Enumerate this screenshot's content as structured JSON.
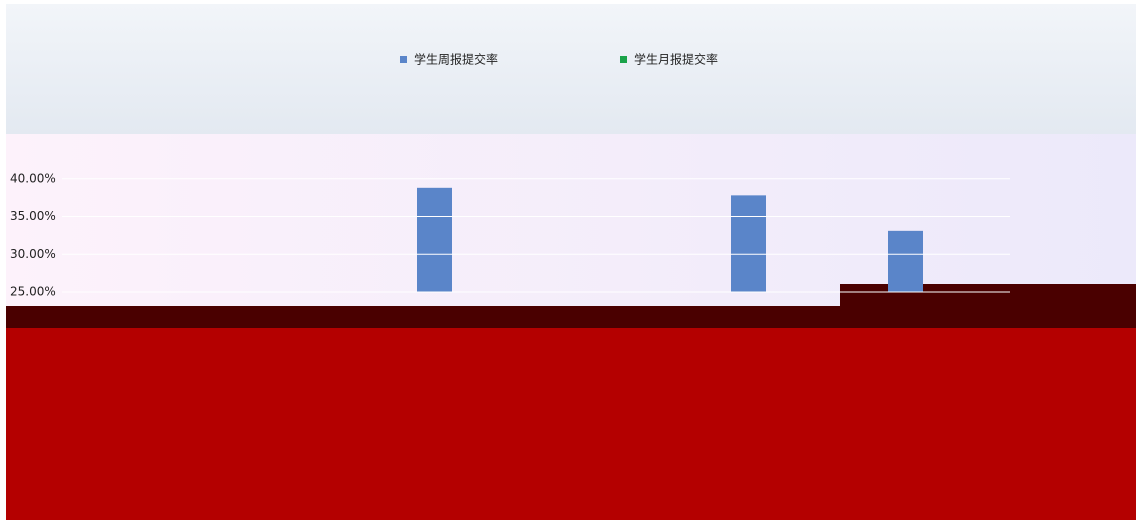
{
  "chart_data": {
    "type": "bar",
    "categories": [
      null,
      null,
      null,
      null,
      null,
      null
    ],
    "series": [
      {
        "name": "学生周报提交率",
        "color": "#5a85c9",
        "values": [
          null,
          null,
          38.8,
          null,
          37.8,
          33.1
        ]
      },
      {
        "name": "学生月报提交率",
        "color": "#1aa34a",
        "values": [
          null,
          null,
          null,
          null,
          null,
          null
        ]
      }
    ],
    "ylim": [
      25,
      45
    ],
    "yticks": [
      {
        "value": 25,
        "label": "25.00%"
      },
      {
        "value": 30,
        "label": "30.00%"
      },
      {
        "value": 35,
        "label": "35.00%"
      },
      {
        "value": 40,
        "label": "40.00%"
      }
    ],
    "grid": true
  }
}
